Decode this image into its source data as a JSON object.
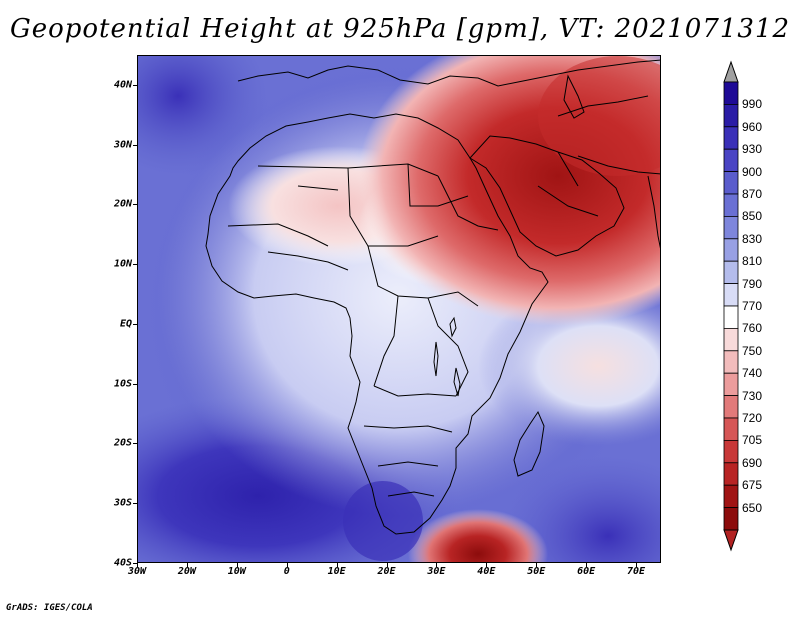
{
  "title": "Geopotential Height at 925hPa [gpm], VT: 2021071312",
  "footer": "GrADS: IGES/COLA",
  "map": {
    "variable": "Geopotential Height",
    "level": "925hPa",
    "units": "gpm",
    "valid_time": "2021071312",
    "lon_range": [
      "30W",
      "75E"
    ],
    "lat_range": [
      "40S",
      "45N"
    ],
    "lat_labels": [
      "40N",
      "30N",
      "20N",
      "10N",
      "EQ",
      "10S",
      "20S",
      "30S",
      "40S"
    ],
    "lon_labels": [
      "30W",
      "20W",
      "10W",
      "0",
      "10E",
      "20E",
      "30E",
      "40E",
      "50E",
      "60E",
      "70E"
    ],
    "regions": [
      {
        "name": "Middle East / Arabian low",
        "level": "705-720",
        "color": "#b22222"
      },
      {
        "name": "Sahara heat low",
        "level": "750-760",
        "color": "#f4c4c4"
      },
      {
        "name": "Southern Indian Ocean low",
        "level": "650-705",
        "color": "#b22222"
      },
      {
        "name": "South Atlantic high",
        "level": "900-930",
        "color": "#3c3cc0"
      }
    ]
  },
  "colorbar": {
    "labels": [
      "990",
      "960",
      "930",
      "900",
      "870",
      "850",
      "830",
      "810",
      "790",
      "770",
      "760",
      "750",
      "740",
      "730",
      "720",
      "705",
      "690",
      "675",
      "650"
    ],
    "colors": [
      "#1e0a96",
      "#2a1ca6",
      "#3a30b8",
      "#4a44c4",
      "#5a5ccc",
      "#6a70d4",
      "#7e86dc",
      "#98a0e4",
      "#b4bcec",
      "#d8dcf6",
      "#ffffff",
      "#f8dada",
      "#f2bcbc",
      "#ec9c9c",
      "#e27a7a",
      "#d65656",
      "#c83838",
      "#b82424",
      "#a01414",
      "#8c0c0c"
    ],
    "overflow_color": "#a0a0a0",
    "underflow_color": "#b22222"
  }
}
